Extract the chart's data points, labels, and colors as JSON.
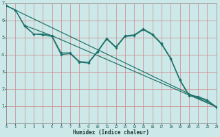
{
  "xlabel": "Humidex (Indice chaleur)",
  "bg_color": "#cce8e8",
  "line_color": "#1a7068",
  "grid_color": "#d08888",
  "xlim": [
    0,
    23
  ],
  "ylim": [
    0,
    7
  ],
  "xticks": [
    0,
    1,
    2,
    3,
    4,
    5,
    6,
    7,
    8,
    9,
    10,
    11,
    12,
    13,
    14,
    15,
    16,
    17,
    18,
    19,
    20,
    21,
    22,
    23
  ],
  "yticks": [
    1,
    2,
    3,
    4,
    5,
    6,
    7
  ],
  "series_data": {
    "x": [
      0,
      1,
      2,
      3,
      4,
      5,
      6,
      7,
      8,
      9,
      10,
      11,
      12,
      13,
      14,
      15,
      16,
      17,
      18,
      19,
      20,
      21,
      22,
      23
    ],
    "y": [
      6.85,
      6.6,
      5.7,
      5.2,
      5.2,
      5.1,
      4.1,
      4.1,
      3.6,
      3.55,
      4.2,
      4.95,
      4.45,
      5.1,
      5.15,
      5.5,
      5.2,
      4.65,
      3.8,
      2.55,
      1.65,
      1.55,
      1.35,
      0.95
    ]
  },
  "series_data2": {
    "x": [
      0,
      1,
      2,
      3,
      4,
      5,
      6,
      7,
      8,
      9,
      10,
      11,
      12,
      13,
      14,
      15,
      16,
      17,
      18,
      19,
      20,
      21,
      22,
      23
    ],
    "y": [
      6.85,
      6.6,
      5.65,
      5.2,
      5.15,
      5.05,
      4.0,
      4.05,
      3.55,
      3.5,
      4.15,
      4.9,
      4.4,
      5.05,
      5.1,
      5.45,
      5.15,
      4.6,
      3.75,
      2.5,
      1.6,
      1.5,
      1.3,
      0.9
    ]
  },
  "line_trend1": {
    "x": [
      0,
      23
    ],
    "y": [
      6.85,
      0.95
    ]
  },
  "line_trend2": {
    "x": [
      2,
      5,
      23
    ],
    "y": [
      5.7,
      5.1,
      0.95
    ]
  }
}
